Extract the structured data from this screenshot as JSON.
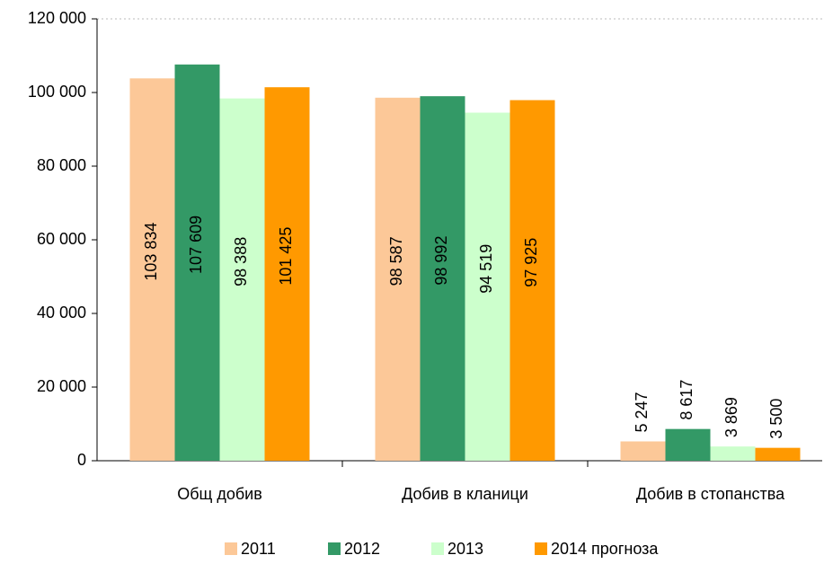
{
  "chart_data": {
    "type": "bar",
    "categories": [
      "Общ добив",
      "Добив в кланици",
      "Добив в стопанства"
    ],
    "series": [
      {
        "name": "2011",
        "color": "#fcc898",
        "values": [
          103834,
          98587,
          5247
        ],
        "value_labels": [
          "103 834",
          "98 587",
          "5 247"
        ]
      },
      {
        "name": "2012",
        "color": "#339966",
        "values": [
          107609,
          98992,
          8617
        ],
        "value_labels": [
          "107 609",
          "98 992",
          "8 617"
        ]
      },
      {
        "name": "2013",
        "color": "#ccffcc",
        "values": [
          98388,
          94519,
          3869
        ],
        "value_labels": [
          "98 388",
          "94 519",
          "3 869"
        ]
      },
      {
        "name": "2014 прогноза",
        "color": "#ff9900",
        "values": [
          101425,
          97925,
          3500
        ],
        "value_labels": [
          "101 425",
          "97 925",
          "3 500"
        ]
      }
    ],
    "ylim": [
      0,
      120000
    ],
    "yticks": [
      0,
      {
        "value": 20000,
        "label": "20 000"
      },
      {
        "value": 40000,
        "label": "40 000"
      },
      {
        "value": 60000,
        "label": "60 000"
      },
      {
        "value": 80000,
        "label": "80 000"
      },
      {
        "value": 100000,
        "label": "100 000"
      },
      {
        "value": 120000,
        "label": "120 000"
      }
    ],
    "grid": false
  }
}
